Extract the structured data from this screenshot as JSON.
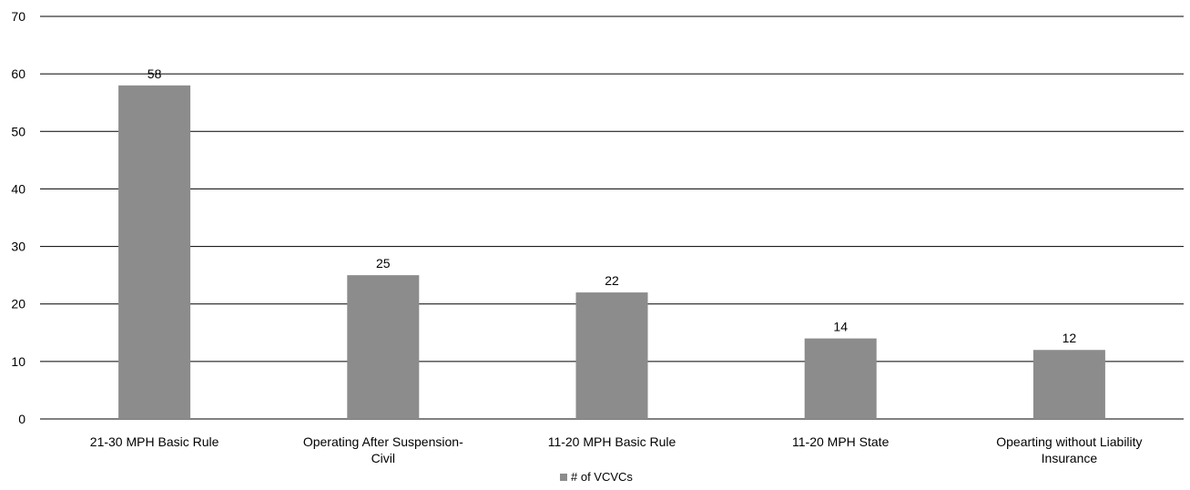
{
  "chart_data": {
    "type": "bar",
    "categories": [
      [
        "21-30 MPH Basic Rule"
      ],
      [
        "Operating After Suspension-",
        "Civil"
      ],
      [
        "11-20 MPH Basic Rule"
      ],
      [
        "11-20 MPH State"
      ],
      [
        "Opearting without Liability",
        "Insurance"
      ]
    ],
    "series": [
      {
        "name": "# of VCVCs",
        "values": [
          58,
          25,
          22,
          14,
          12
        ],
        "color": "#8c8c8c"
      }
    ],
    "ylim": [
      0,
      70
    ],
    "yticks": [
      0,
      10,
      20,
      30,
      40,
      50,
      60,
      70
    ],
    "grid": true,
    "legend": "bottom"
  },
  "legend": {
    "label": "# of VCVCs"
  }
}
